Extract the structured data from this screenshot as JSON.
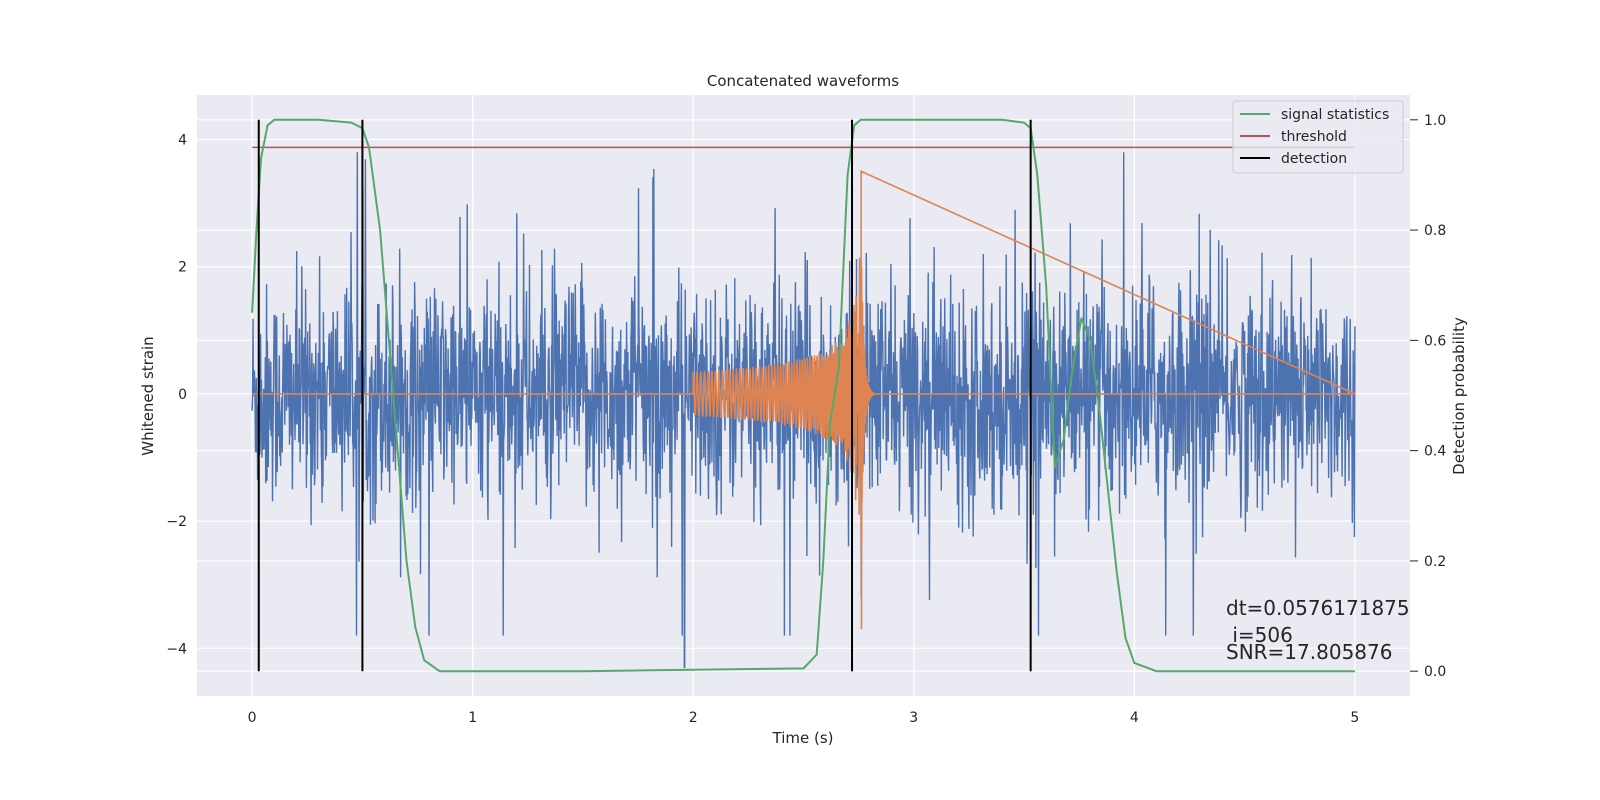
{
  "chart_data": {
    "type": "line",
    "title": "Concatenated waveforms",
    "xlabel": "Time (s)",
    "ylabel": "Whitened strain",
    "ylabel_right": "Detection probability",
    "xlim": [
      -0.25,
      5.25
    ],
    "ylim": [
      -4.75,
      4.7
    ],
    "ylim_right": [
      -0.045,
      1.045
    ],
    "xticks": [
      0,
      1,
      2,
      3,
      4,
      5
    ],
    "xtick_labels": [
      "0",
      "1",
      "2",
      "3",
      "4",
      "5"
    ],
    "yticks": [
      -4,
      -2,
      0,
      2,
      4
    ],
    "ytick_labels": [
      "−4",
      "−2",
      "0",
      "2",
      "4"
    ],
    "yticks_right": [
      0.0,
      0.2,
      0.4,
      0.6,
      0.8,
      1.0
    ],
    "ytick_labels_right": [
      "0.0",
      "0.2",
      "0.4",
      "0.6",
      "0.8",
      "1.0"
    ],
    "grid": true,
    "legend_position": "upper right",
    "legend": [
      {
        "label": "signal statistics",
        "color": "#55a868"
      },
      {
        "label": "threshold",
        "color": "#c44e52"
      },
      {
        "label": "detection",
        "color": "#000000"
      }
    ],
    "series": [
      {
        "role": "noise strain",
        "color": "#4c72b0",
        "axis": "left",
        "x_range": [
          0,
          5
        ],
        "typical_amplitude": 1.0,
        "peak_amplitude": 3.8,
        "min_value": -4.3
      },
      {
        "role": "injected waveform",
        "color": "#dd8452",
        "axis": "left",
        "x_range": [
          0,
          5
        ],
        "chirp_start": 2.0,
        "merger_time": 2.76,
        "peak_value": 3.5,
        "trough_value": -3.7
      },
      {
        "name": "signal statistics",
        "color": "#55a868",
        "axis": "right",
        "x": [
          0,
          0.02,
          0.04,
          0.07,
          0.1,
          0.15,
          0.3,
          0.45,
          0.5,
          0.53,
          0.58,
          0.62,
          0.66,
          0.7,
          0.74,
          0.78,
          0.85,
          1.5,
          2.5,
          2.56,
          2.59,
          2.62,
          2.66,
          2.7,
          2.73,
          2.76,
          2.8,
          3.0,
          3.4,
          3.5,
          3.53,
          3.56,
          3.6,
          3.64,
          3.68,
          3.72,
          3.76,
          3.8,
          3.84,
          3.88,
          3.92,
          3.96,
          4.0,
          4.1,
          4.5,
          5.0
        ],
        "y": [
          0.65,
          0.8,
          0.93,
          0.99,
          1.0,
          1.0,
          1.0,
          0.995,
          0.985,
          0.95,
          0.8,
          0.6,
          0.4,
          0.2,
          0.08,
          0.02,
          0.0,
          0.0,
          0.005,
          0.03,
          0.2,
          0.45,
          0.55,
          0.9,
          0.99,
          1.0,
          1.0,
          1.0,
          1.0,
          0.995,
          0.985,
          0.9,
          0.7,
          0.37,
          0.42,
          0.55,
          0.64,
          0.6,
          0.48,
          0.33,
          0.18,
          0.06,
          0.015,
          0.0,
          0.0,
          0.0
        ]
      },
      {
        "name": "threshold",
        "color": "#c44e52",
        "axis": "right",
        "x": [
          0,
          5
        ],
        "y": [
          0.95,
          0.95
        ]
      },
      {
        "name": "detection",
        "color": "#000000",
        "type": "vlines",
        "x": [
          0.03,
          0.5,
          2.72,
          3.53
        ],
        "ymin": 0.0,
        "ymax": 1.0
      }
    ],
    "annotations": [
      "dt=0.0576171875",
      " i=506",
      "SNR=17.805876"
    ]
  }
}
